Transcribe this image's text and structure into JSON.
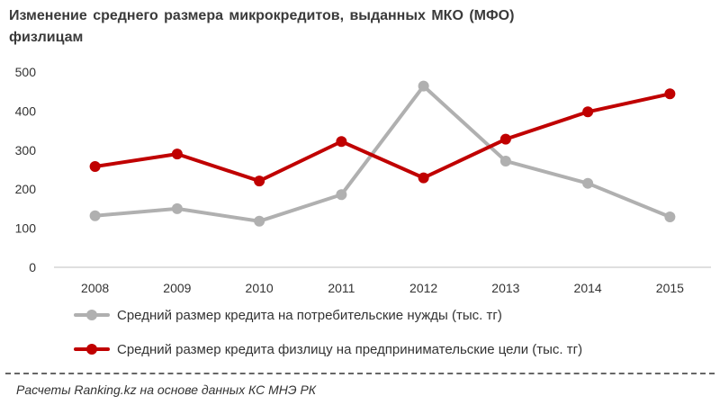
{
  "chart_data": {
    "type": "line",
    "title": "Изменение среднего размера микрокредитов, выданных МКО (МФО) физлицам",
    "categories": [
      "2008",
      "2009",
      "2010",
      "2011",
      "2012",
      "2013",
      "2014",
      "2015"
    ],
    "yticks": [
      "0",
      "100",
      "200",
      "300",
      "400",
      "500"
    ],
    "ylim": [
      0,
      500
    ],
    "grid": false,
    "legend_position": "bottom",
    "series": [
      {
        "name": "Средний размер кредита на потребительские нужды (тыс. тг)",
        "color": "#b0b0b0",
        "values": [
          132,
          150,
          118,
          186,
          464,
          272,
          215,
          129
        ]
      },
      {
        "name": "Средний размер кредита физлицу на предпринимательские цели (тыс. тг)",
        "color": "#c00000",
        "values": [
          258,
          290,
          221,
          322,
          229,
          328,
          398,
          444
        ]
      }
    ]
  },
  "footer": {
    "source": "Расчеты Ranking.kz на основе данных КС МНЭ РК"
  }
}
